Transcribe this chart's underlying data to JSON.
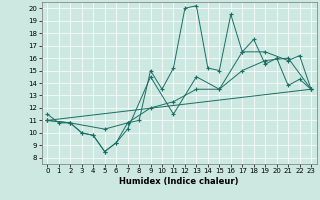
{
  "xlabel": "Humidex (Indice chaleur)",
  "xlim": [
    -0.5,
    23.5
  ],
  "ylim": [
    7.5,
    20.5
  ],
  "yticks": [
    8,
    9,
    10,
    11,
    12,
    13,
    14,
    15,
    16,
    17,
    18,
    19,
    20
  ],
  "xticks": [
    0,
    1,
    2,
    3,
    4,
    5,
    6,
    7,
    8,
    9,
    10,
    11,
    12,
    13,
    14,
    15,
    16,
    17,
    18,
    19,
    20,
    21,
    22,
    23
  ],
  "bg_color": "#cce8e0",
  "line_color": "#1a6e64",
  "lines": [
    {
      "x": [
        0,
        1,
        2,
        3,
        4,
        5,
        6,
        7,
        8,
        9,
        10,
        11,
        12,
        13,
        14,
        15,
        16,
        17,
        18,
        19,
        20,
        21,
        22,
        23
      ],
      "y": [
        11.5,
        10.8,
        10.8,
        10.0,
        9.8,
        8.5,
        9.2,
        10.8,
        11.0,
        15.0,
        13.5,
        15.2,
        20.0,
        20.2,
        15.2,
        15.0,
        19.5,
        16.5,
        17.5,
        15.5,
        16.0,
        13.8,
        14.3,
        13.5
      ]
    },
    {
      "x": [
        0,
        2,
        3,
        4,
        5,
        6,
        7,
        9,
        11,
        13,
        15,
        17,
        19,
        21,
        22,
        23
      ],
      "y": [
        11.0,
        10.8,
        10.0,
        9.8,
        8.5,
        9.2,
        10.3,
        14.5,
        11.5,
        14.5,
        13.5,
        16.5,
        16.5,
        15.8,
        16.2,
        13.5
      ]
    },
    {
      "x": [
        0,
        2,
        5,
        7,
        9,
        11,
        13,
        15,
        17,
        19,
        21,
        23
      ],
      "y": [
        11.0,
        10.8,
        10.3,
        10.8,
        12.0,
        12.5,
        13.5,
        13.5,
        15.0,
        15.8,
        16.0,
        13.5
      ]
    },
    {
      "x": [
        0,
        23
      ],
      "y": [
        11.0,
        13.5
      ]
    }
  ]
}
